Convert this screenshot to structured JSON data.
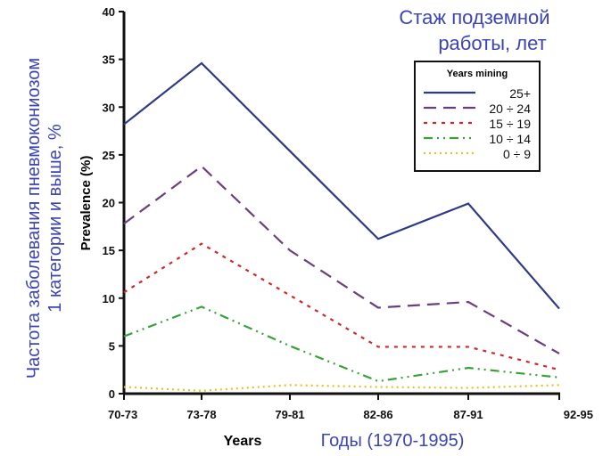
{
  "chart_data": {
    "type": "line",
    "title": "Стаж подземной работы, лет",
    "title_lines": [
      "Стаж подземной",
      "работы, лет"
    ],
    "xlabel": "Years",
    "xlabel_ru": "Годы (1970-1995)",
    "ylabel": "Prevalence (%)",
    "ylabel_ru_lines": [
      "Частота заболевания пневмокониозом",
      "1 категории и выше, %"
    ],
    "categories": [
      "70-73",
      "73-78",
      "79-81",
      "82-86",
      "87-91",
      "92-95"
    ],
    "ylim": [
      0,
      40
    ],
    "yticks": [
      0,
      5,
      10,
      15,
      20,
      25,
      30,
      35,
      40
    ],
    "grid": false,
    "legend": {
      "title": "Years mining",
      "placement": "top-right"
    },
    "series": [
      {
        "name": "25+",
        "color": "#2e3a84",
        "dash": "solid",
        "values": [
          28.2,
          34.6,
          25.4,
          16.2,
          19.9,
          8.9
        ]
      },
      {
        "name": "20 ÷ 24",
        "color": "#6b3f7e",
        "dash": "dashed",
        "values": [
          17.8,
          23.8,
          15.0,
          9.0,
          9.6,
          4.2
        ]
      },
      {
        "name": "15 ÷ 19",
        "color": "#cc2a2a",
        "dash": "dotted",
        "values": [
          10.6,
          15.7,
          10.3,
          4.9,
          4.9,
          2.5
        ]
      },
      {
        "name": "10 ÷ 14",
        "color": "#3aa03a",
        "dash": "dash-dot-dot",
        "values": [
          6.0,
          9.1,
          5.0,
          1.3,
          2.7,
          1.7
        ]
      },
      {
        "name": "0 ÷ 9",
        "color": "#e8c020",
        "dash": "fine-dotted",
        "values": [
          0.7,
          0.3,
          0.9,
          0.7,
          0.6,
          0.9
        ]
      }
    ]
  }
}
